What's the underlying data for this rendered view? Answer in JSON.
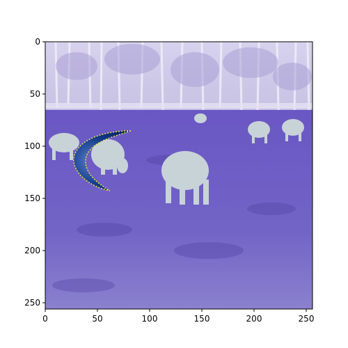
{
  "figure": {
    "image_description_icon": "inverted-color-photo",
    "xlim": [
      0,
      256
    ],
    "ylim": [
      256,
      0
    ],
    "x_ticks": [
      {
        "value": 0,
        "label": "0"
      },
      {
        "value": 50,
        "label": "50"
      },
      {
        "value": 100,
        "label": "100"
      },
      {
        "value": 150,
        "label": "150"
      },
      {
        "value": 200,
        "label": "200"
      },
      {
        "value": 250,
        "label": "250"
      }
    ],
    "y_ticks": [
      {
        "value": 0,
        "label": "0"
      },
      {
        "value": 50,
        "label": "50"
      },
      {
        "value": 100,
        "label": "100"
      },
      {
        "value": 150,
        "label": "150"
      },
      {
        "value": 200,
        "label": "200"
      },
      {
        "value": 250,
        "label": "250"
      }
    ],
    "colors": {
      "sky_trees": "#c9c5e4",
      "field": "#6a5cc0",
      "field_dark": "#4d3fa0",
      "cow": "#c8d3d8",
      "crescent": "#0a2a7a",
      "crescent_edge": "#f2e23a"
    }
  }
}
